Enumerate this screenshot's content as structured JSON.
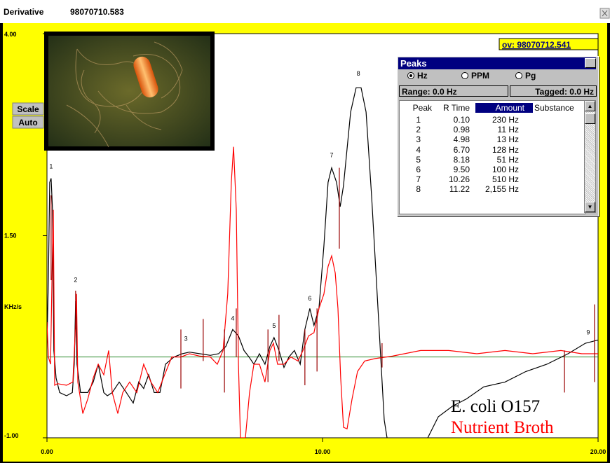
{
  "window": {
    "title": "Derivative",
    "file": "98070710.583"
  },
  "buttons": [
    "Scale",
    "Auto"
  ],
  "overlay_label": "ov: 98070712.541",
  "chart_data": {
    "type": "line",
    "y_label": "KHz/s",
    "xlim": [
      0,
      20
    ],
    "ylim": [
      -1,
      4
    ],
    "xticks": [
      {
        "value": 0,
        "label": "0.00"
      },
      {
        "value": 10,
        "label": "10.00"
      },
      {
        "value": 20,
        "label": "20.00"
      }
    ],
    "yticks": [
      {
        "value": -1,
        "label": "-1.00"
      },
      {
        "value": 1.5,
        "label": "1.50"
      },
      {
        "value": 4,
        "label": "4.00"
      }
    ],
    "baseline": {
      "value": 0,
      "color": "#2e8b2e"
    },
    "series": [
      {
        "name": "E. coli O157",
        "color": "#000000",
        "x": [
          0,
          0.05,
          0.1,
          0.15,
          0.2,
          0.25,
          0.33,
          0.46,
          0.71,
          0.92,
          0.99,
          1.04,
          1.09,
          1.22,
          1.48,
          1.68,
          1.86,
          2.06,
          2.19,
          2.37,
          2.62,
          2.88,
          3.13,
          3.33,
          3.51,
          3.69,
          3.89,
          4.1,
          4.3,
          4.61,
          4.91,
          5.17,
          5.55,
          5.93,
          6.23,
          6.49,
          6.74,
          6.95,
          7.15,
          7.33,
          7.51,
          7.71,
          7.91,
          8.09,
          8.24,
          8.42,
          8.6,
          8.78,
          8.98,
          9.19,
          9.36,
          9.54,
          9.69,
          9.87,
          10.05,
          10.2,
          10.33,
          10.51,
          10.64,
          10.76,
          11.02,
          11.22,
          11.4,
          11.58,
          11.78,
          12.04,
          12.24,
          12.34,
          13.0,
          13.82,
          14.2,
          14.71,
          15.22,
          15.85,
          16.62,
          17.38,
          18.14,
          18.91,
          19.54,
          20.0
        ],
        "values": [
          0.17,
          0.95,
          2.16,
          2.21,
          1.82,
          0.08,
          -0.26,
          -0.44,
          -0.48,
          -0.44,
          -0.09,
          0.69,
          -0.09,
          -0.44,
          -0.44,
          -0.31,
          -0.09,
          -0.44,
          -0.48,
          -0.44,
          -0.31,
          -0.44,
          -0.57,
          -0.31,
          -0.39,
          -0.22,
          -0.44,
          -0.44,
          -0.09,
          0.0,
          0.04,
          0.06,
          0.04,
          0.02,
          0.04,
          0.13,
          0.34,
          0.26,
          0.08,
          0.0,
          -0.09,
          0.04,
          -0.09,
          0.13,
          0.24,
          0.08,
          -0.13,
          0.0,
          0.08,
          -0.09,
          0.34,
          0.6,
          0.39,
          0.6,
          1.38,
          2.16,
          2.34,
          2.16,
          1.86,
          2.12,
          3.03,
          3.33,
          3.33,
          3.03,
          1.99,
          0.43,
          -0.78,
          -1.0,
          null,
          -1.0,
          -0.74,
          -0.61,
          -0.52,
          -0.37,
          -0.31,
          -0.18,
          -0.09,
          0.04,
          0.17,
          0.21
        ]
      },
      {
        "name": "Nutrient Broth",
        "color": "#ff0000",
        "x": [
          0,
          0.05,
          0.13,
          0.18,
          0.23,
          0.28,
          0.38,
          0.71,
          0.94,
          1.02,
          1.07,
          1.12,
          1.3,
          1.48,
          1.68,
          1.86,
          2.06,
          2.24,
          2.37,
          2.57,
          2.75,
          3.0,
          3.26,
          3.51,
          3.77,
          4.02,
          4.27,
          4.53,
          4.86,
          5.17,
          5.55,
          5.93,
          6.18,
          6.39,
          6.56,
          6.69,
          6.77,
          6.87,
          6.95,
          7.02,
          7.2,
          7.35,
          7.51,
          7.71,
          7.91,
          8.09,
          8.22,
          8.37,
          8.6,
          8.85,
          9.11,
          9.29,
          9.49,
          9.69,
          9.87,
          10.05,
          10.2,
          10.33,
          10.46,
          10.56,
          10.66,
          10.76,
          10.89,
          11.07,
          11.27,
          11.53,
          11.91,
          12.54,
          13.56,
          14.58,
          15.6,
          16.62,
          17.63,
          18.65,
          19.41,
          20.0
        ],
        "values": [
          0.43,
          0.0,
          -0.09,
          0.95,
          1.82,
          -0.35,
          -0.33,
          -0.35,
          -0.31,
          0.26,
          0.78,
          -0.31,
          -0.7,
          -0.52,
          -0.26,
          -0.09,
          -0.22,
          0.08,
          -0.44,
          -0.7,
          -0.44,
          -0.31,
          -0.44,
          -0.09,
          -0.31,
          -0.44,
          -0.22,
          0.0,
          0.0,
          0.04,
          0.01,
          0.0,
          -0.09,
          0.08,
          0.78,
          2.16,
          2.6,
          1.82,
          -0.09,
          -1.0,
          -1.0,
          -0.44,
          -0.09,
          -0.09,
          -0.31,
          0.08,
          0.17,
          -0.09,
          -0.09,
          0.0,
          -0.05,
          0.08,
          0.26,
          0.3,
          0.6,
          0.78,
          1.12,
          1.25,
          1.04,
          0.6,
          -0.26,
          -0.87,
          -0.89,
          -0.52,
          -0.18,
          -0.05,
          -0.02,
          0.01,
          0.08,
          0.08,
          0.04,
          0.08,
          0.04,
          0.08,
          0.04,
          0.04
        ]
      }
    ],
    "peak_labels": [
      {
        "text": "1",
        "x": 0.15,
        "y": 2.33
      },
      {
        "text": "2",
        "x": 1.04,
        "y": 0.93
      },
      {
        "text": "3",
        "x": 5.04,
        "y": 0.2
      },
      {
        "text": "4",
        "x": 6.74,
        "y": 0.45
      },
      {
        "text": "5",
        "x": 8.24,
        "y": 0.36
      },
      {
        "text": "6",
        "x": 9.54,
        "y": 0.7
      },
      {
        "text": "7",
        "x": 10.33,
        "y": 2.47
      },
      {
        "text": "8",
        "x": 11.3,
        "y": 3.48
      },
      {
        "text": "9",
        "x": 19.64,
        "y": 0.28
      }
    ],
    "tag_lines": {
      "color": "#990000",
      "items": [
        {
          "x": 0.15,
          "ymin": 0.95,
          "ymax": 2.0
        },
        {
          "x": 1.04,
          "ymin": 0.34,
          "ymax": 0.82
        },
        {
          "x": 4.86,
          "ymin": -0.39,
          "ymax": 0.34
        },
        {
          "x": 5.67,
          "ymin": -0.05,
          "ymax": 0.47
        },
        {
          "x": 6.44,
          "ymin": -0.44,
          "ymax": 0.34
        },
        {
          "x": 6.87,
          "ymin": 0.0,
          "ymax": 0.6
        },
        {
          "x": 8.02,
          "ymin": -0.31,
          "ymax": 0.34
        },
        {
          "x": 8.42,
          "ymin": -0.05,
          "ymax": 0.52
        },
        {
          "x": 9.36,
          "ymin": -0.35,
          "ymax": 0.34
        },
        {
          "x": 9.8,
          "ymin": -0.18,
          "ymax": 0.6
        },
        {
          "x": 10.61,
          "ymin": 1.34,
          "ymax": 2.34
        },
        {
          "x": 12.16,
          "ymin": -0.13,
          "ymax": 0.17
        },
        {
          "x": 18.78,
          "ymin": -0.44,
          "ymax": 0.08
        },
        {
          "x": 19.87,
          "ymin": -0.31,
          "ymax": 0.65
        }
      ]
    }
  },
  "peaks_panel": {
    "title": "Peaks",
    "units": [
      "Hz",
      "PPM",
      "Pg"
    ],
    "selected_unit": 0,
    "range": "Range: 0.0 Hz",
    "tagged": "Tagged: 0.0 Hz",
    "columns": [
      "Peak",
      "R Time",
      "Amount",
      "Substance"
    ],
    "sorted_column": 2,
    "rows": [
      [
        "1",
        "0.10",
        "230 Hz"
      ],
      [
        "2",
        "0.98",
        "11 Hz"
      ],
      [
        "3",
        "4.98",
        "13 Hz"
      ],
      [
        "4",
        "6.70",
        "128 Hz"
      ],
      [
        "5",
        "8.18",
        "51 Hz"
      ],
      [
        "6",
        "9.50",
        "100 Hz"
      ],
      [
        "7",
        "10.26",
        "510 Hz"
      ],
      [
        "8",
        "11.22",
        "2,155 Hz"
      ]
    ]
  }
}
